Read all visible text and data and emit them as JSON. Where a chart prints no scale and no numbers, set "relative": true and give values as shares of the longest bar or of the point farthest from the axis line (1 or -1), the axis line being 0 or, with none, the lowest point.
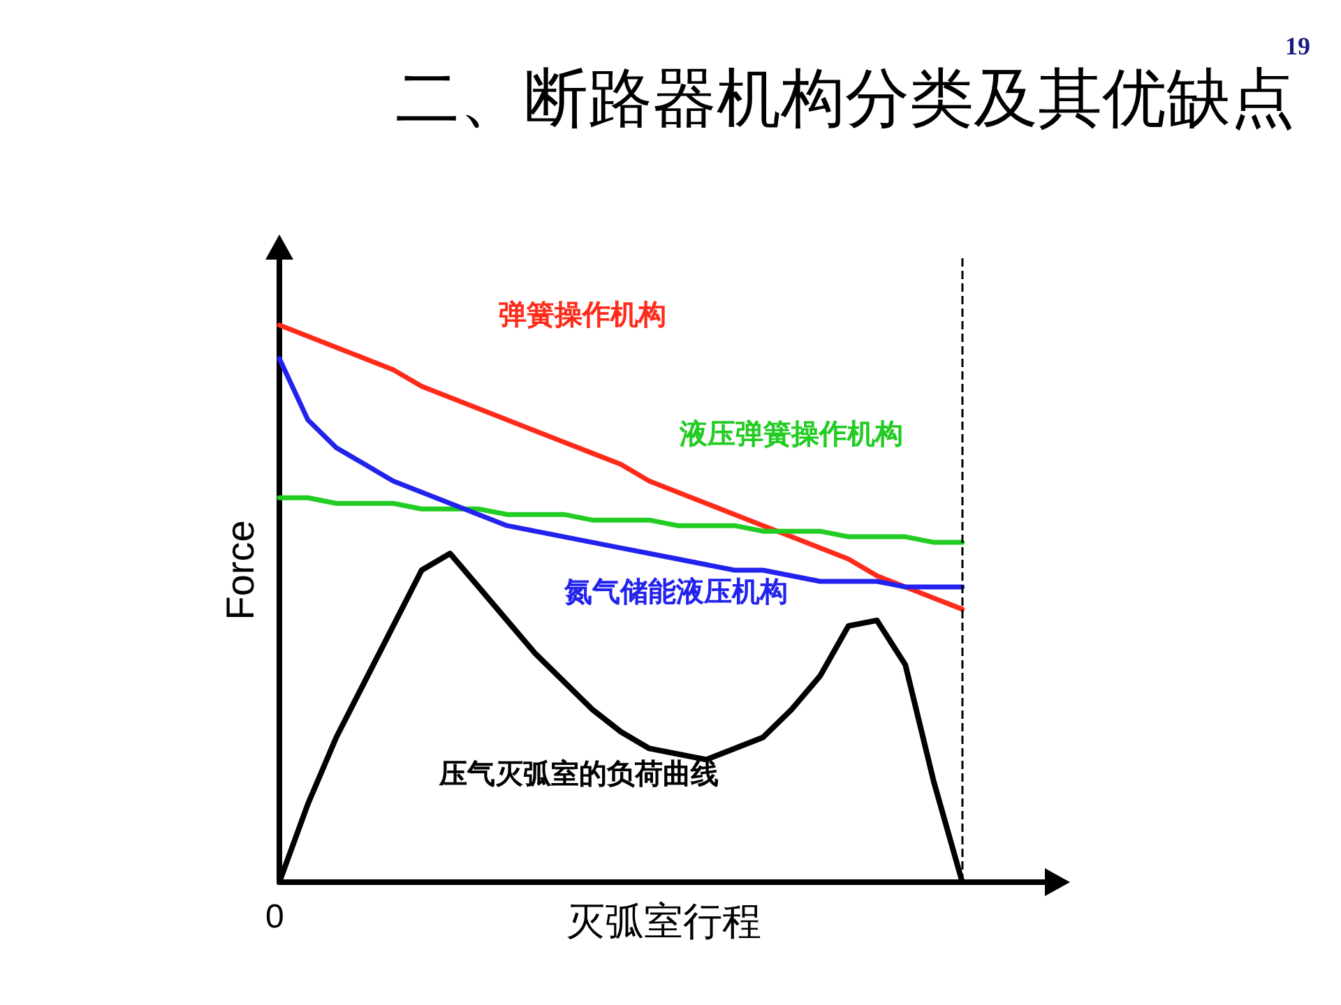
{
  "chart_data": {
    "type": "line",
    "title": "二、断路器机构分类及其优缺点",
    "xlabel": "灭弧室行程",
    "ylabel": "Force",
    "relative": true,
    "legend": false,
    "grid": false,
    "marker": "none",
    "line_style": "solid",
    "categories": [
      null,
      null,
      null,
      null,
      null,
      null,
      null,
      null,
      null,
      null,
      null,
      null,
      null,
      null,
      null,
      null,
      null,
      null,
      null,
      null,
      null,
      null,
      null,
      null,
      null,
      null,
      null,
      null
    ],
    "series": [
      {
        "name": "弹簧操作机构",
        "color": "#ff2a1a",
        "values": [
          1,
          0.98,
          0.96,
          0.94,
          0.92,
          0.89,
          0.87,
          0.85,
          0.83,
          0.81,
          0.79,
          0.77,
          0.75,
          0.72,
          0.7,
          0.68,
          0.66,
          0.64,
          0.62,
          0.6,
          0.58,
          0.55,
          0.53,
          0.51,
          0.49,
          null,
          null,
          null
        ]
      },
      {
        "name": "液压弹簧操作机构",
        "color": "#22cc22",
        "values": [
          0.69,
          0.69,
          0.68,
          0.68,
          0.68,
          0.67,
          0.67,
          0.67,
          0.66,
          0.66,
          0.66,
          0.65,
          0.65,
          0.65,
          0.64,
          0.64,
          0.64,
          0.63,
          0.63,
          0.63,
          0.62,
          0.62,
          0.62,
          0.61,
          0.61,
          null,
          null,
          null
        ]
      },
      {
        "name": "氮气储能液压机构",
        "color": "#2222ee",
        "values": [
          0.94,
          0.83,
          0.78,
          0.75,
          0.72,
          0.7,
          0.68,
          0.66,
          0.64,
          0.63,
          0.62,
          0.61,
          0.6,
          0.59,
          0.58,
          0.57,
          0.56,
          0.56,
          0.55,
          0.54,
          0.54,
          0.54,
          0.53,
          0.53,
          0.53,
          null,
          null,
          null
        ]
      },
      {
        "name": "压气灭弧室的负荷曲线",
        "color": "#000000",
        "values": [
          0,
          0.14,
          0.26,
          0.36,
          0.46,
          0.56,
          0.59,
          0.53,
          0.47,
          0.41,
          0.36,
          0.31,
          0.27,
          0.24,
          0.23,
          0.22,
          0.24,
          0.26,
          0.31,
          0.37,
          0.46,
          0.47,
          0.39,
          0.18,
          0,
          null,
          null,
          null
        ]
      }
    ],
    "annotations": [
      "19",
      "0"
    ]
  }
}
